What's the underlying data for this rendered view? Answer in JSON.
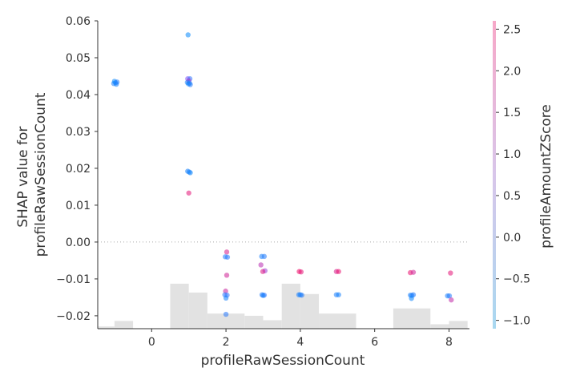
{
  "chart_data": {
    "type": "scatter",
    "xlabel": "profileRawSessionCount",
    "ylabel_lines": [
      "SHAP value for",
      "profileRawSessionCount"
    ],
    "colorbar_label": "profileAmountZScore",
    "xlim": [
      -1.45,
      8.55
    ],
    "ylim": [
      -0.0235,
      0.06
    ],
    "x_ticks": [
      0,
      2,
      4,
      6,
      8
    ],
    "y_ticks": [
      -0.02,
      -0.01,
      0.0,
      0.01,
      0.02,
      0.03,
      0.04,
      0.05,
      0.06
    ],
    "y_tick_labels": [
      "−0.02",
      "−0.01",
      "0.00",
      "0.01",
      "0.02",
      "0.03",
      "0.04",
      "0.05",
      "0.06"
    ],
    "colorbar_range": [
      -1.1,
      2.6
    ],
    "colorbar_ticks": [
      -1.0,
      -0.5,
      0.0,
      0.5,
      1.0,
      1.5,
      2.0,
      2.5
    ],
    "colorbar_tick_labels": [
      "−1.0",
      "−0.5",
      "0.0",
      "0.5",
      "1.0",
      "1.5",
      "2.0",
      "2.5"
    ],
    "zero_line": true,
    "histogram": {
      "bins": [
        [
          -1.5,
          -1.0,
          0.6
        ],
        [
          -1.0,
          -0.5,
          2.1
        ],
        [
          -0.5,
          0.5,
          0.0
        ],
        [
          0.5,
          1.0,
          12.2
        ],
        [
          1.0,
          1.5,
          9.8
        ],
        [
          1.5,
          2.5,
          4.1
        ],
        [
          2.5,
          3.0,
          3.5
        ],
        [
          3.0,
          3.5,
          2.3
        ],
        [
          3.5,
          4.0,
          12.2
        ],
        [
          4.0,
          4.5,
          9.4
        ],
        [
          4.5,
          5.5,
          4.1
        ],
        [
          5.5,
          6.5,
          0.0
        ],
        [
          6.5,
          7.5,
          5.5
        ],
        [
          7.5,
          8.0,
          1.2
        ],
        [
          8.0,
          8.5,
          2.1
        ]
      ]
    },
    "points": [
      {
        "x": -0.97,
        "y": 0.0432,
        "c": -0.9
      },
      {
        "x": -1.02,
        "y": 0.043,
        "c": -0.7
      },
      {
        "x": -0.95,
        "y": 0.0428,
        "c": -0.8
      },
      {
        "x": -1.0,
        "y": 0.0436,
        "c": -1.0
      },
      {
        "x": -0.93,
        "y": 0.0434,
        "c": -0.6
      },
      {
        "x": 0.98,
        "y": 0.0562,
        "c": -1.0
      },
      {
        "x": 0.97,
        "y": 0.0443,
        "c": 0.8
      },
      {
        "x": 1.03,
        "y": 0.0443,
        "c": -0.4
      },
      {
        "x": 1.0,
        "y": 0.0437,
        "c": 1.5
      },
      {
        "x": 0.96,
        "y": 0.0433,
        "c": -0.7
      },
      {
        "x": 1.02,
        "y": 0.0431,
        "c": -0.8
      },
      {
        "x": 0.99,
        "y": 0.0429,
        "c": -0.9
      },
      {
        "x": 1.04,
        "y": 0.0427,
        "c": -0.6
      },
      {
        "x": 0.97,
        "y": 0.0192,
        "c": -0.8
      },
      {
        "x": 1.01,
        "y": 0.019,
        "c": -0.7
      },
      {
        "x": 1.04,
        "y": 0.0188,
        "c": -0.9
      },
      {
        "x": 1.0,
        "y": 0.0133,
        "c": 2.2
      },
      {
        "x": 2.02,
        "y": -0.0027,
        "c": 2.0
      },
      {
        "x": 1.98,
        "y": -0.004,
        "c": -0.6
      },
      {
        "x": 2.04,
        "y": -0.0041,
        "c": -0.5
      },
      {
        "x": 2.02,
        "y": -0.009,
        "c": 1.9
      },
      {
        "x": 1.99,
        "y": -0.0133,
        "c": 1.8
      },
      {
        "x": 1.97,
        "y": -0.0143,
        "c": -0.5
      },
      {
        "x": 2.03,
        "y": -0.0144,
        "c": -0.4
      },
      {
        "x": 2.0,
        "y": -0.0152,
        "c": -0.8
      },
      {
        "x": 2.0,
        "y": -0.0196,
        "c": -0.5
      },
      {
        "x": 2.96,
        "y": -0.0039,
        "c": -0.7
      },
      {
        "x": 3.03,
        "y": -0.0039,
        "c": -0.6
      },
      {
        "x": 2.94,
        "y": -0.0062,
        "c": 1.6
      },
      {
        "x": 3.05,
        "y": -0.0078,
        "c": 1.2
      },
      {
        "x": 2.99,
        "y": -0.008,
        "c": 2.1
      },
      {
        "x": 2.97,
        "y": -0.0143,
        "c": -0.6
      },
      {
        "x": 3.03,
        "y": -0.0144,
        "c": -0.4
      },
      {
        "x": 3.0,
        "y": -0.0145,
        "c": -0.8
      },
      {
        "x": 3.97,
        "y": -0.008,
        "c": 2.4
      },
      {
        "x": 4.02,
        "y": -0.0081,
        "c": 2.2
      },
      {
        "x": 3.96,
        "y": -0.0143,
        "c": -0.7
      },
      {
        "x": 4.0,
        "y": -0.0143,
        "c": -0.8
      },
      {
        "x": 4.04,
        "y": -0.0144,
        "c": -0.6
      },
      {
        "x": 4.97,
        "y": -0.008,
        "c": 2.0
      },
      {
        "x": 5.03,
        "y": -0.008,
        "c": 2.3
      },
      {
        "x": 4.97,
        "y": -0.0143,
        "c": -0.7
      },
      {
        "x": 5.03,
        "y": -0.0143,
        "c": -0.8
      },
      {
        "x": 6.96,
        "y": -0.0083,
        "c": 2.3
      },
      {
        "x": 7.04,
        "y": -0.0082,
        "c": 1.9
      },
      {
        "x": 6.96,
        "y": -0.0144,
        "c": -0.7
      },
      {
        "x": 7.0,
        "y": -0.0145,
        "c": -0.8
      },
      {
        "x": 7.04,
        "y": -0.0143,
        "c": -0.6
      },
      {
        "x": 6.99,
        "y": -0.0153,
        "c": -0.9
      },
      {
        "x": 8.04,
        "y": -0.0084,
        "c": 2.2
      },
      {
        "x": 7.96,
        "y": -0.0146,
        "c": -0.7
      },
      {
        "x": 8.01,
        "y": -0.0146,
        "c": -0.6
      },
      {
        "x": 8.06,
        "y": -0.0157,
        "c": 1.7
      }
    ]
  }
}
